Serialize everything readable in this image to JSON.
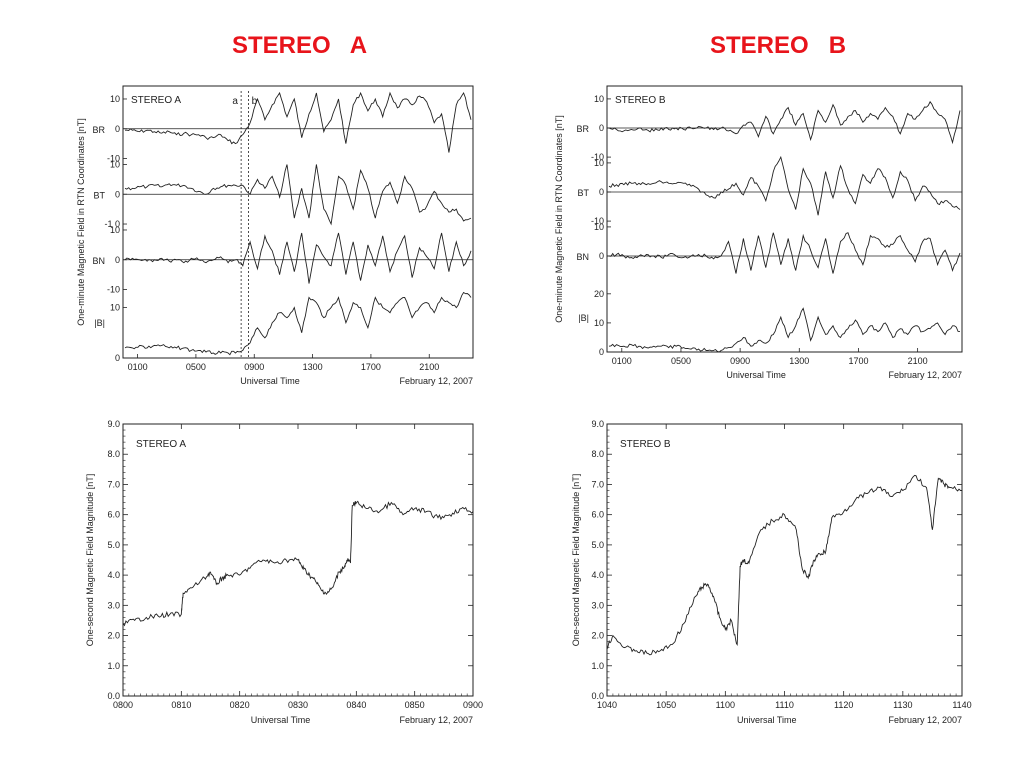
{
  "titles": {
    "a": "STEREO   A",
    "b": "STEREO   B"
  },
  "colors": {
    "title": "#e8141b",
    "line": "#222222"
  },
  "chart_data": [
    {
      "id": "a_rtn",
      "type": "line",
      "panel_label": "STEREO A",
      "ylabel": "One-minute Magnetic Field in RTN Coordinates [nT]",
      "xlabel": "Universal Time",
      "date": "February 12, 2007",
      "xlim": [
        0,
        24
      ],
      "x_tick_labels": [
        "0100",
        "0500",
        "0900",
        "1300",
        "1700",
        "2100"
      ],
      "markers": [
        {
          "label": "a",
          "x": 8.1
        },
        {
          "label": "b",
          "x": 8.6
        }
      ],
      "series": [
        {
          "name": "BR",
          "yticks": [
            "10",
            "0",
            "-10"
          ],
          "values": [
            -0.5,
            -0.5,
            -1,
            -0.5,
            -1,
            -1.5,
            -1,
            -2,
            -1.5,
            -2,
            -2,
            -3,
            -3,
            -2,
            -4,
            -5,
            -2,
            2,
            10,
            3,
            8,
            12,
            4,
            10,
            -3,
            5,
            12,
            -1,
            3,
            10,
            -5,
            8,
            12,
            6,
            10,
            4,
            12,
            7,
            10,
            8,
            11,
            9,
            2,
            5,
            -8,
            8,
            12,
            3
          ]
        },
        {
          "name": "BT",
          "yticks": [
            "10",
            "0",
            "-1 0"
          ],
          "values": [
            2,
            2,
            2.5,
            2.5,
            3,
            2.5,
            3.5,
            3,
            3,
            2,
            1,
            0,
            2,
            2.5,
            3,
            3,
            3,
            0,
            5,
            2,
            6,
            -1,
            10,
            -8,
            2,
            -8,
            10,
            -5,
            -10,
            6,
            3,
            -5,
            8,
            2,
            -8,
            1,
            4,
            -3,
            6,
            2,
            -6,
            -4,
            1,
            -3,
            -6,
            -5,
            -9,
            -8
          ]
        },
        {
          "name": "BN",
          "yticks": [
            "10",
            "0",
            "-10"
          ],
          "values": [
            0,
            0.5,
            0,
            -0.5,
            0,
            0.5,
            -0.5,
            0,
            -1,
            0.5,
            0,
            -1,
            0,
            1,
            -1,
            0,
            -2,
            6,
            -3,
            8,
            3,
            -5,
            6,
            -4,
            9,
            -8,
            5,
            1,
            -2,
            9,
            -5,
            6,
            -7,
            5,
            -2,
            8,
            -4,
            3,
            8,
            -6,
            4,
            1,
            -3,
            9,
            -4,
            6,
            -2,
            3
          ]
        },
        {
          "name": "|B|",
          "yticks": [
            "10",
            "0"
          ],
          "values": [
            2,
            2,
            2.5,
            2,
            2.5,
            2.5,
            2,
            2,
            2,
            1.5,
            1.5,
            1.2,
            1,
            1,
            1,
            1,
            1.5,
            3,
            6,
            4,
            7,
            9,
            8,
            10,
            5,
            12,
            11,
            8,
            10,
            12,
            7,
            11,
            10,
            6,
            12,
            10,
            9,
            11,
            12,
            8,
            10,
            11,
            9,
            12,
            11,
            10,
            13,
            12
          ]
        }
      ]
    },
    {
      "id": "b_rtn",
      "type": "line",
      "panel_label": "STEREO B",
      "ylabel": "One-minute Magnetic Field in RTN Coordinates [nT]",
      "xlabel": "Universal Time",
      "date": "February 12, 2007",
      "xlim": [
        0,
        24
      ],
      "x_tick_labels": [
        "0100",
        "0500",
        "0900",
        "1300",
        "1700",
        "2100"
      ],
      "series": [
        {
          "name": "BR",
          "yticks": [
            "10",
            "0",
            "-10"
          ],
          "values": [
            0,
            -0.5,
            -1,
            -0.5,
            0,
            -0.5,
            -1,
            0,
            -0.5,
            0,
            -0.5,
            0,
            0.5,
            0,
            -0.5,
            0,
            -1,
            -2,
            1,
            2,
            -3,
            4,
            -2,
            3,
            7,
            1,
            5,
            -4,
            6,
            2,
            8,
            1,
            4,
            6,
            2,
            5,
            3,
            7,
            4,
            -2,
            5,
            3,
            6,
            9,
            5,
            3,
            -5,
            6
          ]
        },
        {
          "name": "BT",
          "yticks": [
            "10",
            "0",
            "-10"
          ],
          "values": [
            2,
            2.5,
            2.5,
            3,
            3,
            2.5,
            3,
            3.5,
            3,
            3,
            3,
            2,
            1,
            -1,
            -2,
            0,
            1,
            3,
            -1,
            5,
            2,
            -3,
            7,
            12,
            1,
            -6,
            8,
            3,
            -8,
            7,
            -2,
            9,
            1,
            -4,
            6,
            3,
            8,
            5,
            -2,
            7,
            4,
            -3,
            2,
            0,
            -4,
            -3,
            -5,
            -6
          ]
        },
        {
          "name": "BN",
          "yticks": [
            "10",
            "0"
          ],
          "values": [
            0,
            0.5,
            0,
            -0.5,
            0,
            0.5,
            0,
            -0.5,
            0.5,
            0,
            -0.5,
            0,
            0.5,
            0,
            -1,
            0,
            5,
            -6,
            6,
            -5,
            7,
            -4,
            8,
            -3,
            6,
            -5,
            7,
            2,
            -4,
            6,
            -6,
            5,
            8,
            2,
            -3,
            7,
            6,
            3,
            4,
            7,
            2,
            -2,
            5,
            6,
            -3,
            2,
            -5,
            1
          ]
        },
        {
          "name": "|B|",
          "yticks": [
            "20",
            "10",
            "0"
          ],
          "values": [
            2,
            2.5,
            2,
            2.5,
            2,
            1.5,
            2,
            2,
            1.5,
            2,
            1.5,
            1,
            1,
            0.5,
            0.5,
            0.5,
            1.5,
            3,
            5,
            2,
            4,
            3,
            6,
            12,
            5,
            9,
            15,
            4,
            12,
            6,
            9,
            5,
            8,
            11,
            6,
            9,
            7,
            10,
            5,
            8,
            6,
            9,
            7,
            8,
            10,
            6,
            9,
            7
          ]
        }
      ]
    },
    {
      "id": "a_1s",
      "type": "line",
      "panel_label": "STEREO A",
      "ylabel": "One-second Magnetic Field Magnitude [nT]",
      "xlabel": "Universal Time",
      "date": "February 12, 2007",
      "xlim": [
        0,
        60
      ],
      "ylim": [
        0,
        9
      ],
      "x_tick_labels": [
        "0800",
        "0810",
        "0820",
        "0830",
        "0840",
        "0850",
        "0900"
      ],
      "y_tick_labels": [
        "0.0",
        "1.0",
        "2.0",
        "3.0",
        "4.0",
        "5.0",
        "6.0",
        "7.0",
        "8.0",
        "9.0"
      ],
      "x": [
        0,
        2,
        4,
        6,
        8,
        10,
        10.3,
        12,
        14,
        15,
        16,
        17,
        18,
        20,
        22,
        24,
        26,
        28,
        30,
        31,
        32,
        33,
        34,
        35,
        36,
        37,
        38,
        38.5,
        39,
        39.3,
        40,
        42,
        44,
        46,
        48,
        50,
        52,
        54,
        56,
        58,
        60
      ],
      "values": [
        2.4,
        2.5,
        2.6,
        2.65,
        2.7,
        2.7,
        3.4,
        3.6,
        3.9,
        4.1,
        3.7,
        3.9,
        4.0,
        4.0,
        4.3,
        4.5,
        4.4,
        4.5,
        4.5,
        4.2,
        4.0,
        3.8,
        3.5,
        3.4,
        3.6,
        4.1,
        4.3,
        4.5,
        4.4,
        6.3,
        6.4,
        6.2,
        6.1,
        6.4,
        6.0,
        6.2,
        6.1,
        5.9,
        6.0,
        6.2,
        6.1
      ]
    },
    {
      "id": "b_1s",
      "type": "line",
      "panel_label": "STEREO B",
      "ylabel": "One-second Magnetic Field Magnitude [nT]",
      "xlabel": "Universal Time",
      "date": "February 12, 2007",
      "xlim": [
        0,
        60
      ],
      "ylim": [
        0,
        9
      ],
      "x_tick_labels": [
        "1040",
        "1050",
        "1100",
        "1110",
        "1120",
        "1130",
        "1140"
      ],
      "y_tick_labels": [
        "0.0",
        "1.0",
        "2.0",
        "3.0",
        "4.0",
        "5.0",
        "6.0",
        "7.0",
        "8.0",
        "9.0"
      ],
      "x": [
        0,
        1,
        3,
        5,
        7,
        9,
        11,
        13,
        15,
        16,
        17,
        18,
        19,
        20,
        21,
        22,
        22.5,
        23,
        24,
        26,
        28,
        30,
        32,
        33,
        34,
        35,
        36,
        37,
        38,
        40,
        42,
        44,
        46,
        48,
        50,
        52,
        54,
        55,
        56,
        57,
        58,
        60
      ],
      "values": [
        1.6,
        2.0,
        1.6,
        1.5,
        1.4,
        1.5,
        1.7,
        2.4,
        3.3,
        3.6,
        3.7,
        3.3,
        2.6,
        2.2,
        2.5,
        1.7,
        4.3,
        4.5,
        4.4,
        5.5,
        5.8,
        6.0,
        5.5,
        4.2,
        3.9,
        4.5,
        4.7,
        4.8,
        5.9,
        6.1,
        6.5,
        6.7,
        6.9,
        6.6,
        6.8,
        7.3,
        6.9,
        5.5,
        7.2,
        7.0,
        6.9,
        6.8
      ]
    }
  ]
}
